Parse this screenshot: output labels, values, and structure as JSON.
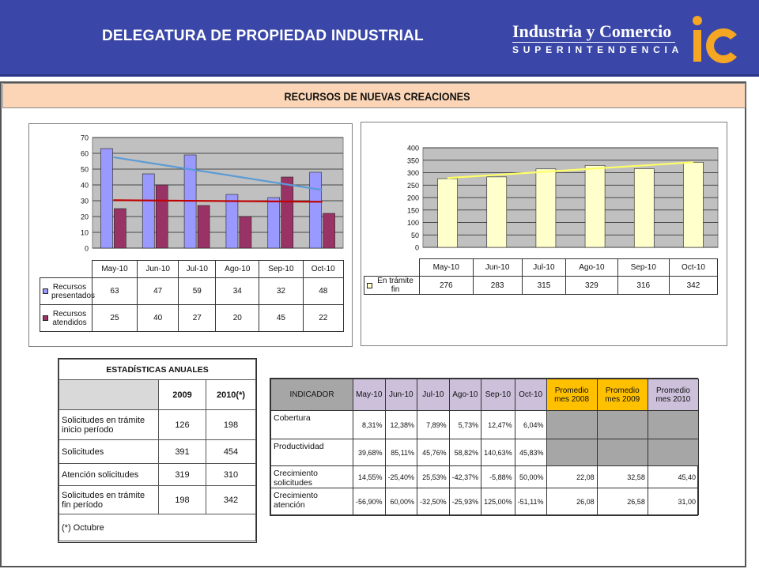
{
  "header": {
    "title": "DELEGATURA DE PROPIEDAD INDUSTRIAL",
    "brand_line1": "Industria y Comercio",
    "brand_line2": "SUPERINTENDENCIA",
    "logo_text": "ic"
  },
  "banner": {
    "title": "RECURSOS DE NUEVAS CREACIONES"
  },
  "colors": {
    "header_bg": "#3a47a8",
    "banner_bg": "#fbd5b5",
    "plot_bg": "#c0c0c0",
    "presentados": "#9999ff",
    "atendidos": "#993366",
    "tramite": "#ffffcc",
    "trend_blue": "#5b9bd5",
    "trend_red": "#c00000",
    "trend_yellow": "#ffff66",
    "indicator_header": "#ccc0da",
    "promedio_highlight": "#ffc000",
    "gray_cell": "#a6a6a6"
  },
  "chart_data": [
    {
      "type": "bar",
      "categories": [
        "May-10",
        "Jun-10",
        "Jul-10",
        "Ago-10",
        "Sep-10",
        "Oct-10"
      ],
      "series": [
        {
          "name": "Recursos presentados",
          "values": [
            63,
            47,
            59,
            34,
            32,
            48
          ]
        },
        {
          "name": "Recursos atendidos",
          "values": [
            25,
            40,
            27,
            20,
            45,
            22
          ]
        }
      ],
      "trendlines": [
        "linear (Recursos presentados)",
        "linear (Recursos atendidos)"
      ],
      "yticks": [
        "0",
        "10",
        "20",
        "30",
        "40",
        "50",
        "60",
        "70"
      ],
      "ylim": [
        0,
        70
      ],
      "grid": true,
      "data_table": true,
      "legend": "data table"
    },
    {
      "type": "bar",
      "categories": [
        "May-10",
        "Jun-10",
        "Jul-10",
        "Ago-10",
        "Sep-10",
        "Oct-10"
      ],
      "series": [
        {
          "name": "En trámite fin",
          "values": [
            276,
            283,
            315,
            329,
            316,
            342
          ]
        }
      ],
      "trendlines": [
        "linear (En trámite fin)"
      ],
      "yticks": [
        "0",
        "50",
        "100",
        "150",
        "200",
        "250",
        "300",
        "350",
        "400"
      ],
      "ylim": [
        0,
        400
      ],
      "grid": true,
      "data_table": true,
      "legend": "data table"
    }
  ],
  "annual_stats": {
    "title": "ESTADÍSTICAS ANUALES",
    "headers": [
      "",
      "2009",
      "2010(*)"
    ],
    "rows": [
      {
        "label": "Solicitudes en trámite inicio período",
        "v2009": "126",
        "v2010": "198"
      },
      {
        "label": "Solicitudes",
        "v2009": "391",
        "v2010": "454"
      },
      {
        "label": "Atención solicitudes",
        "v2009": "319",
        "v2010": "310"
      },
      {
        "label": "Solicitudes en trámite fin período",
        "v2009": "198",
        "v2010": "342"
      }
    ],
    "footnote": "(*) Octubre"
  },
  "indicators": {
    "headers": [
      "INDICADOR",
      "May-10",
      "Jun-10",
      "Jul-10",
      "Ago-10",
      "Sep-10",
      "Oct-10",
      "Promedio mes 2008",
      "Promedio mes 2009",
      "Promedio mes 2010"
    ],
    "rows": [
      {
        "label": "Cobertura",
        "values": [
          "8,31%",
          "12,38%",
          "7,89%",
          "5,73%",
          "12,47%",
          "6,04%"
        ],
        "avgs": [
          "",
          "",
          ""
        ]
      },
      {
        "label": "Productividad",
        "values": [
          "39,68%",
          "85,11%",
          "45,76%",
          "58,82%",
          "140,63%",
          "45,83%"
        ],
        "avgs": [
          "",
          "",
          ""
        ]
      },
      {
        "label": "Crecimiento solicitudes",
        "values": [
          "14,55%",
          "-25,40%",
          "25,53%",
          "-42,37%",
          "-5,88%",
          "50,00%"
        ],
        "avgs": [
          "22,08",
          "32,58",
          "45,40"
        ]
      },
      {
        "label": "Crecimiento atención",
        "values": [
          "-56,90%",
          "60,00%",
          "-32,50%",
          "-25,93%",
          "125,00%",
          "-51,11%"
        ],
        "avgs": [
          "26,08",
          "26,58",
          "31,00"
        ]
      }
    ]
  }
}
